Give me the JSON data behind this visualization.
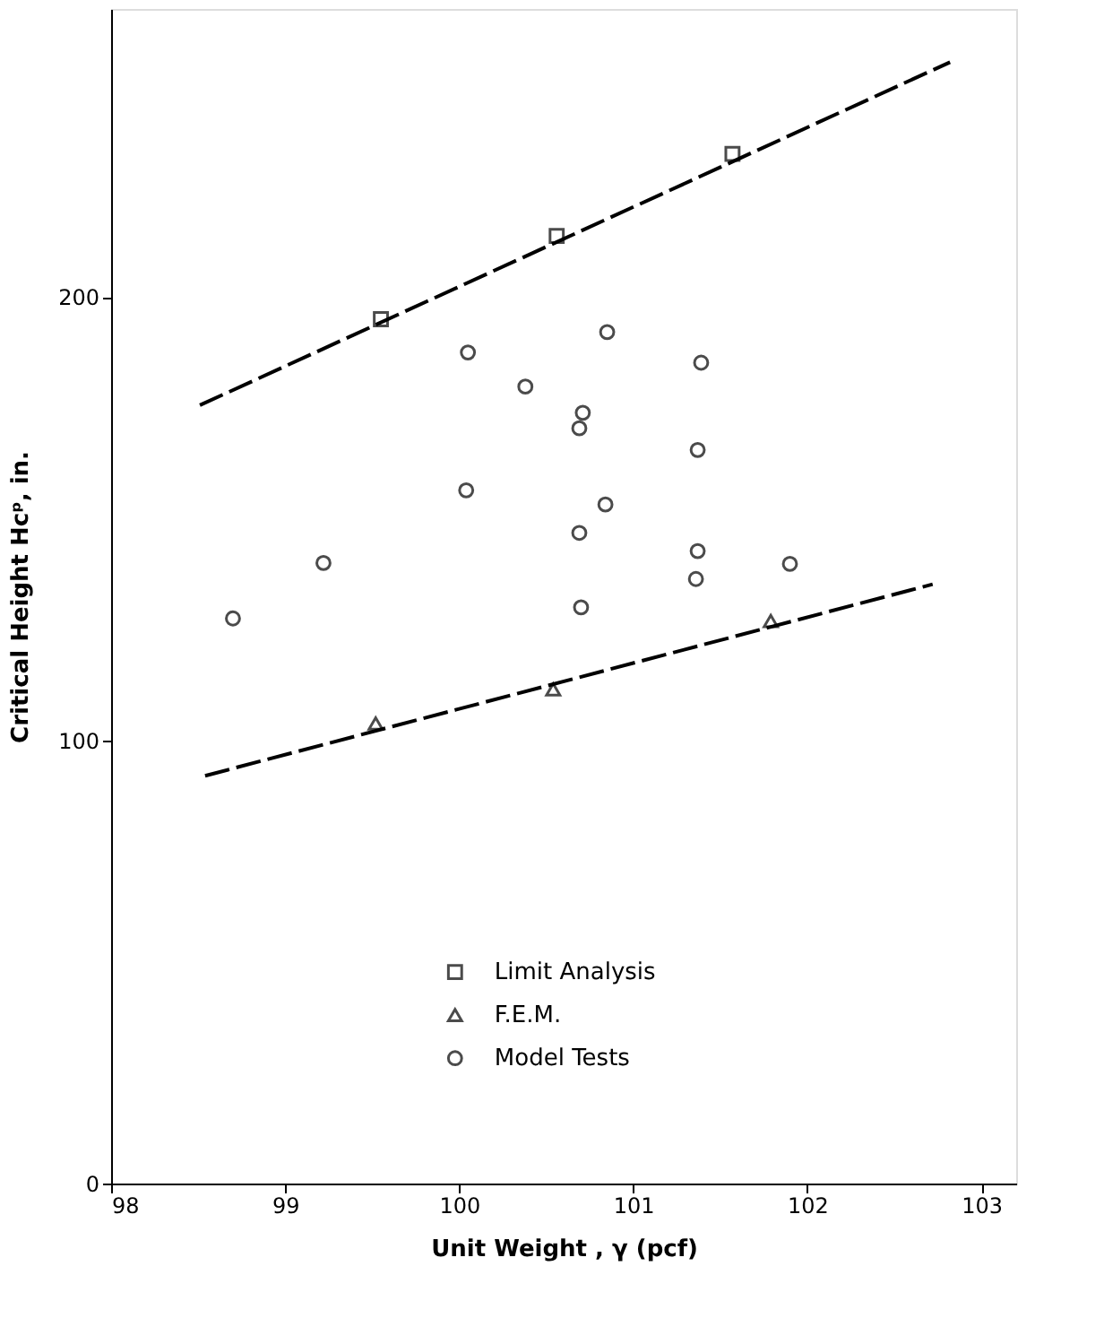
{
  "chart_data": {
    "type": "scatter",
    "xlabel": "Unit Weight , γ (pcf)",
    "ylabel": "Critical Height Hcᵖ, in.",
    "xlim": [
      98,
      103.2
    ],
    "ylim": [
      0,
      265
    ],
    "xticks": [
      98,
      99,
      100,
      101,
      102,
      103
    ],
    "yticks": [
      0,
      100,
      200
    ],
    "grid": false,
    "legend": "bottom",
    "series": [
      {
        "name": "Limit Analysis",
        "marker": "square",
        "color": "#000000",
        "x": [
          99.55,
          100.56,
          101.57
        ],
        "values": [
          195.0,
          213.8,
          232.3
        ]
      },
      {
        "name": "F.E.M.",
        "marker": "triangle",
        "color": "#000000",
        "x": [
          99.52,
          100.54,
          101.79
        ],
        "values": [
          103.8,
          111.5,
          126.9
        ]
      },
      {
        "name": "Model Tests",
        "marker": "circle",
        "color": "#000000",
        "x": [
          100.85,
          100.05,
          101.39,
          100.38,
          100.71,
          100.69,
          101.37,
          100.04,
          100.84,
          100.69,
          101.37,
          99.22,
          101.9,
          101.36,
          100.7,
          98.7
        ],
        "values": [
          192.1,
          187.5,
          185.2,
          179.8,
          173.9,
          170.4,
          165.5,
          156.4,
          153.2,
          146.8,
          142.7,
          140.0,
          139.8,
          136.4,
          130.0,
          127.5
        ]
      },
      {
        "type": "line",
        "line_style": "dashed",
        "marker": "none",
        "color": "#000000",
        "x": [
          98.51,
          102.82
        ],
        "values": [
          175.6,
          253.0
        ]
      },
      {
        "type": "line",
        "line_style": "dashed",
        "marker": "none",
        "color": "#000000",
        "x": [
          98.54,
          102.72
        ],
        "values": [
          92.0,
          135.2
        ]
      }
    ]
  }
}
